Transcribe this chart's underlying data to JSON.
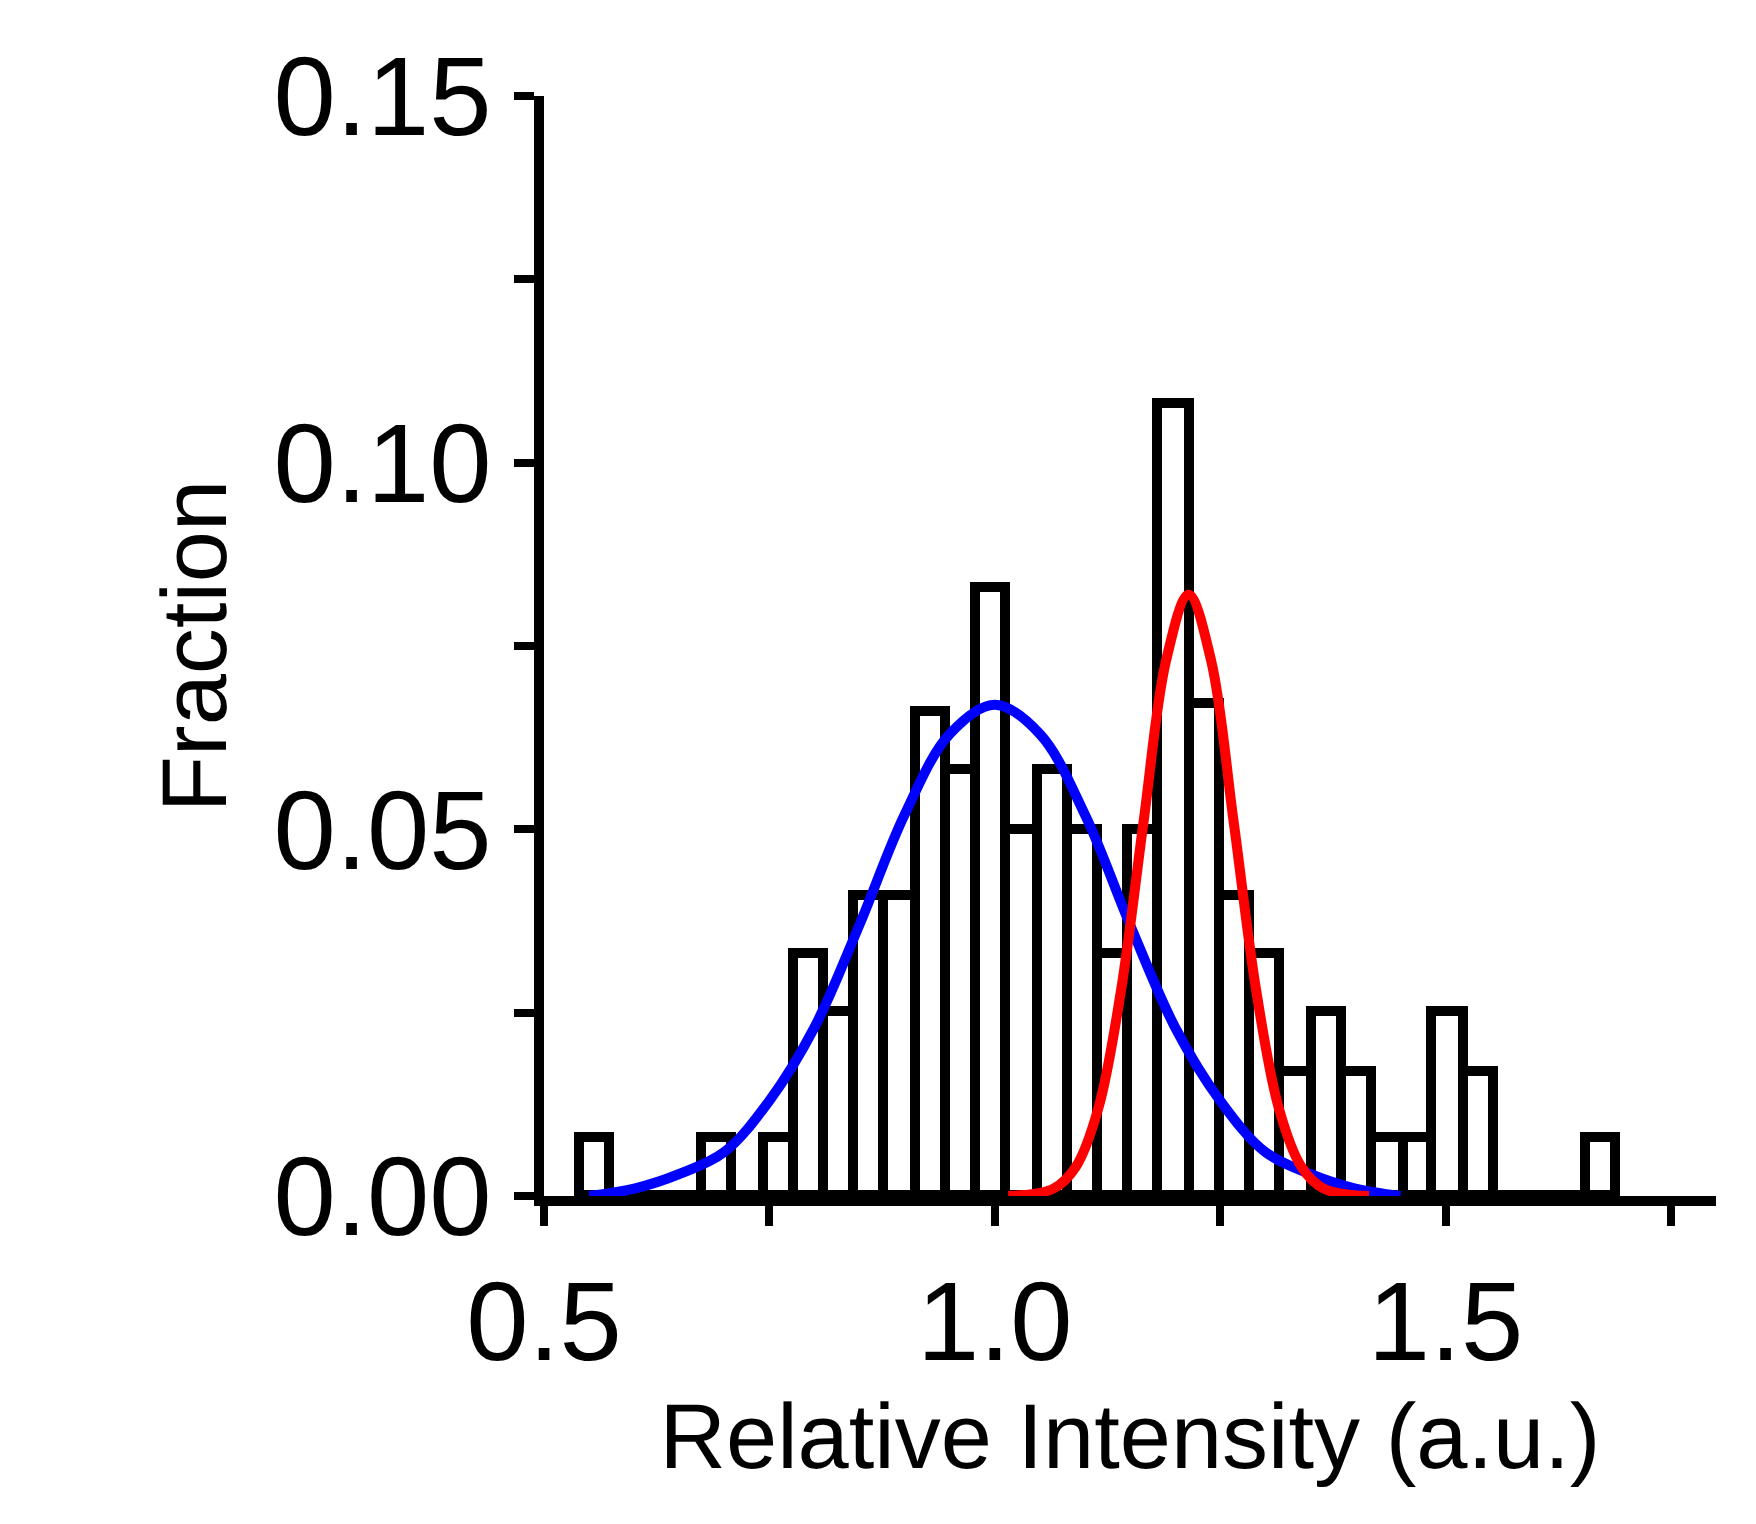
{
  "chart_data": {
    "type": "histogram",
    "xlabel": "Relative Intensity (a.u.)",
    "ylabel": "Fraction",
    "bins": [
      0.54,
      0.574,
      0.608,
      0.641,
      0.675,
      0.709,
      0.743,
      0.777,
      0.81,
      0.844,
      0.878,
      0.912,
      0.946,
      0.979,
      1.013,
      1.047,
      1.081,
      1.115,
      1.148,
      1.182,
      1.216,
      1.25,
      1.284,
      1.317,
      1.351,
      1.385,
      1.419,
      1.453,
      1.486,
      1.52,
      1.554,
      1.588,
      1.622,
      1.655,
      1.689
    ],
    "values": [
      0.008,
      0,
      0,
      0,
      0.008,
      0,
      0.008,
      0.033,
      0.025,
      0.041,
      0.041,
      0.066,
      0.058,
      0.083,
      0.05,
      0.058,
      0.05,
      0.033,
      0.05,
      0.108,
      0.067,
      0.041,
      0.033,
      0.017,
      0.025,
      0.017,
      0.008,
      0.008,
      0.025,
      0.017,
      0,
      0,
      0,
      0.008
    ],
    "color": "#000000",
    "series": [
      {
        "type": "line",
        "color": "#0000ff",
        "x": [
          0.55,
          0.6,
          0.65,
          0.7,
          0.75,
          0.8,
          0.85,
          0.9,
          0.95,
          1.0,
          1.05,
          1.1,
          1.15,
          1.2,
          1.25,
          1.3,
          1.35,
          1.4,
          1.45
        ],
        "values": [
          0,
          0.001,
          0.003,
          0.006,
          0.013,
          0.023,
          0.037,
          0.052,
          0.063,
          0.067,
          0.063,
          0.052,
          0.037,
          0.023,
          0.013,
          0.006,
          0.003,
          0.001,
          0
        ]
      },
      {
        "type": "line",
        "color": "#ff0000",
        "x": [
          1.015,
          1.065,
          1.09,
          1.115,
          1.14,
          1.165,
          1.19,
          1.215,
          1.24,
          1.265,
          1.29,
          1.315,
          1.34,
          1.365,
          1.415
        ],
        "values": [
          0,
          0.001,
          0.004,
          0.012,
          0.028,
          0.051,
          0.073,
          0.082,
          0.073,
          0.051,
          0.028,
          0.012,
          0.004,
          0.001,
          0
        ]
      }
    ],
    "xlim": [
      0.5,
      1.8
    ],
    "xticks": [
      {
        "value": 0.5,
        "label": "0.5"
      },
      {
        "value": 0.75,
        "label": null
      },
      {
        "value": 1.0,
        "label": "1.0"
      },
      {
        "value": 1.25,
        "label": null
      },
      {
        "value": 1.5,
        "label": "1.5"
      },
      {
        "value": 1.75,
        "label": null
      }
    ],
    "ylim": [
      0,
      0.15
    ],
    "yticks": [
      {
        "value": 0,
        "label": "0.00"
      },
      {
        "value": 0.025,
        "label": null
      },
      {
        "value": 0.05,
        "label": "0.05"
      },
      {
        "value": 0.075,
        "label": null
      },
      {
        "value": 0.1,
        "label": "0.10"
      },
      {
        "value": 0.125,
        "label": null
      },
      {
        "value": 0.15,
        "label": "0.15"
      }
    ]
  }
}
